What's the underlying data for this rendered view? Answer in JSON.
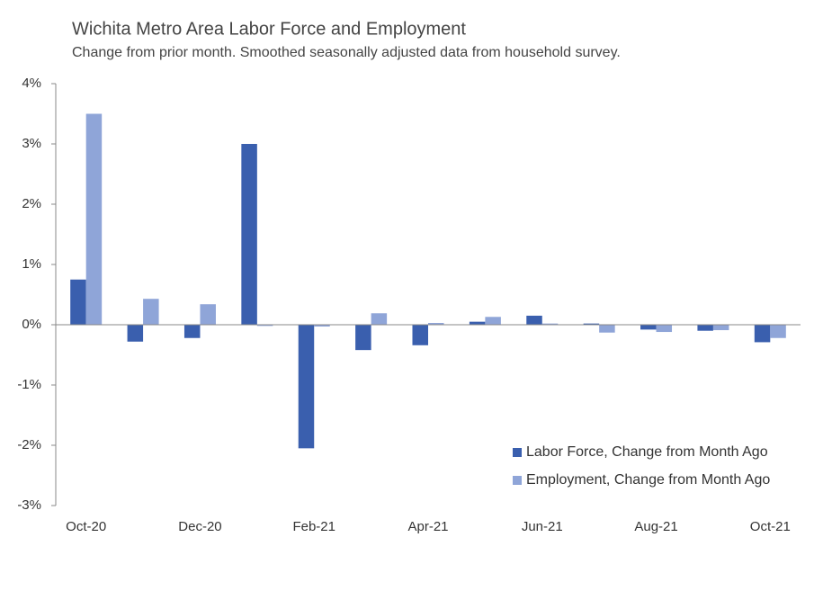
{
  "chart_data": {
    "type": "bar",
    "title": "Wichita Metro Area Labor Force and Employment",
    "subtitle": "Change from prior month. Smoothed seasonally adjusted data from household survey.",
    "categories": [
      "Oct-20",
      null,
      "Dec-20",
      null,
      "Feb-21",
      null,
      "Apr-21",
      null,
      "Jun-21",
      null,
      "Aug-21",
      null,
      "Oct-21"
    ],
    "series": [
      {
        "name": "Labor Force, Change from Month Ago",
        "color": "#3a5fae",
        "values": [
          0.75,
          -0.28,
          -0.22,
          3.0,
          -2.05,
          -0.42,
          -0.34,
          0.05,
          0.15,
          0.02,
          -0.08,
          -0.1,
          -0.29
        ]
      },
      {
        "name": "Employment, Change from Month Ago",
        "color": "#8fa5d8",
        "values": [
          3.5,
          0.43,
          0.34,
          -0.02,
          -0.03,
          0.19,
          0.03,
          0.13,
          0.02,
          -0.13,
          -0.12,
          -0.09,
          -0.22
        ]
      }
    ],
    "ylim": [
      -3,
      4
    ],
    "yticks": [
      {
        "value": -3,
        "label": "-3%"
      },
      {
        "value": -2,
        "label": "-2%"
      },
      {
        "value": -1,
        "label": "-1%"
      },
      {
        "value": 0,
        "label": "0%"
      },
      {
        "value": 1,
        "label": "1%"
      },
      {
        "value": 2,
        "label": "2%"
      },
      {
        "value": 3,
        "label": "3%"
      },
      {
        "value": 4,
        "label": "4%"
      }
    ],
    "grid": false,
    "legend": "lower right"
  }
}
